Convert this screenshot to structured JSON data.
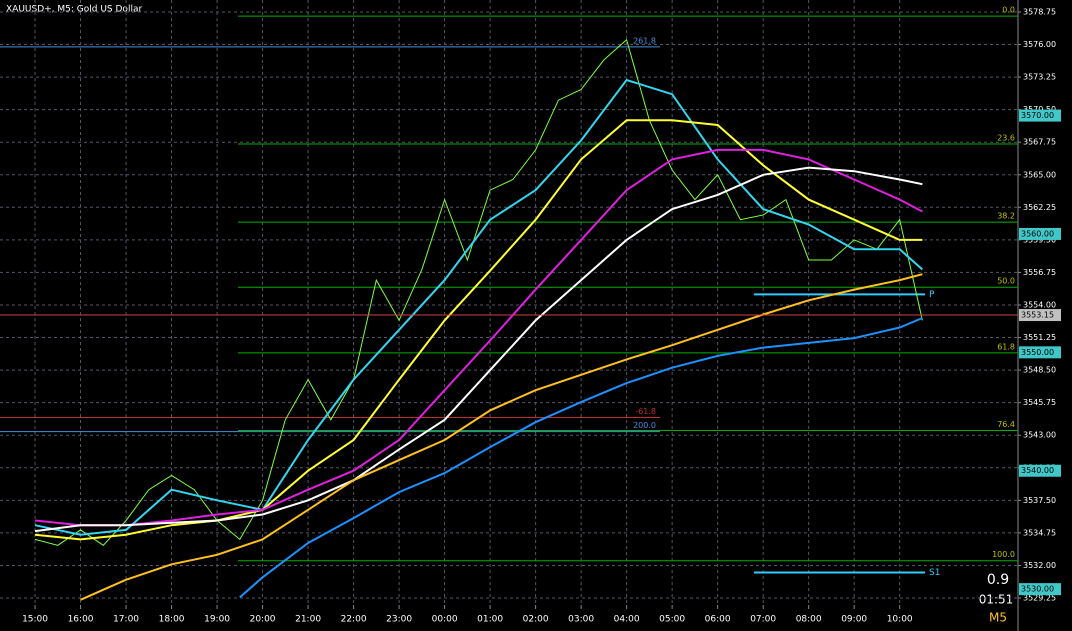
{
  "chart_data": {
    "type": "line",
    "title": "XAUUSD+, M5:  Gold US Dollar",
    "xlim": [
      -0.77,
      21.6
    ],
    "ylim": [
      3528.66,
      3579.76
    ],
    "grid": true,
    "xticks": [
      {
        "value": 0,
        "label": "15:00"
      },
      {
        "value": 1,
        "label": "16:00"
      },
      {
        "value": 2,
        "label": "17:00"
      },
      {
        "value": 3,
        "label": "18:00"
      },
      {
        "value": 4,
        "label": "19:00"
      },
      {
        "value": 5,
        "label": "20:00"
      },
      {
        "value": 6,
        "label": "21:00"
      },
      {
        "value": 7,
        "label": "22:00"
      },
      {
        "value": 8,
        "label": "23:00"
      },
      {
        "value": 9,
        "label": "00:00"
      },
      {
        "value": 10,
        "label": "01:00"
      },
      {
        "value": 11,
        "label": "02:00"
      },
      {
        "value": 12,
        "label": "03:00"
      },
      {
        "value": 13,
        "label": "04:00"
      },
      {
        "value": 14,
        "label": "05:00"
      },
      {
        "value": 15,
        "label": "06:00"
      },
      {
        "value": 16,
        "label": "07:00"
      },
      {
        "value": 17,
        "label": "08:00"
      },
      {
        "value": 18,
        "label": "09:00"
      },
      {
        "value": 19,
        "label": "10:00"
      }
    ],
    "yticks": [
      3578.75,
      {
        "value": 3576,
        "label": "3576.00"
      },
      3573.25,
      {
        "value": 3570.5,
        "label": "3570.50"
      },
      3567.75,
      {
        "value": 3565,
        "label": "3565.00"
      },
      3562.25,
      {
        "value": 3559.5,
        "label": "3559.50"
      },
      3556.75,
      {
        "value": 3554,
        "label": "3554.00"
      },
      3551.25,
      {
        "value": 3548.5,
        "label": "3548.50"
      },
      3545.75,
      {
        "value": 3543,
        "label": "3543.00"
      },
      3540.25,
      {
        "value": 3537.5,
        "label": "3537.50"
      },
      3534.75,
      {
        "value": 3532,
        "label": "3532.00"
      },
      3529.25
    ],
    "series": [
      {
        "color": "#7fff3f",
        "x": [
          0,
          0.5,
          1,
          1.5,
          2,
          2.5,
          3,
          3.5,
          4,
          4.5,
          5,
          5.5,
          6,
          6.5,
          7,
          7.5,
          8,
          8.5,
          9,
          9.5,
          10,
          10.5,
          11,
          11.5,
          12,
          12.5,
          13,
          13.5,
          14,
          14.5,
          15,
          15.5,
          16,
          16.5,
          17,
          17.5,
          18,
          18.5,
          19,
          19.5
        ],
        "values": [
          3534.2,
          3533.7,
          3535.0,
          3533.7,
          3535.8,
          3538.4,
          3539.6,
          3538.4,
          3535.8,
          3534.2,
          3537.5,
          3544.3,
          3547.7,
          3544.3,
          3547.7,
          3556.1,
          3552.7,
          3557.0,
          3562.9,
          3557.8,
          3563.7,
          3564.6,
          3567.1,
          3571.3,
          3572.2,
          3574.7,
          3576.4,
          3569.6,
          3565.4,
          3562.9,
          3565.0,
          3561.2,
          3561.6,
          3562.9,
          3557.8,
          3557.8,
          3559.5,
          3558.7,
          3561.2,
          3552.7
        ]
      },
      {
        "color": "#33d6f0",
        "x": [
          0,
          1,
          2,
          3,
          4,
          5,
          6,
          7,
          8,
          9,
          10,
          11,
          12,
          13,
          14,
          15,
          16,
          17,
          18,
          19,
          19.5
        ],
        "values": [
          3535.4,
          3534.6,
          3535.0,
          3538.4,
          3537.5,
          3536.7,
          3542.6,
          3547.7,
          3551.9,
          3556.1,
          3561.2,
          3563.7,
          3567.9,
          3573.0,
          3571.8,
          3566.3,
          3562.1,
          3560.8,
          3558.7,
          3558.7,
          3557.0
        ]
      },
      {
        "color": "#ffff33",
        "x": [
          0,
          1,
          2,
          3,
          4,
          5,
          6,
          7,
          8,
          9,
          10,
          11,
          12,
          13,
          14,
          15,
          16,
          17,
          18,
          19,
          19.5
        ],
        "values": [
          3534.6,
          3534.2,
          3534.6,
          3535.4,
          3535.8,
          3536.7,
          3540.0,
          3542.6,
          3547.7,
          3552.7,
          3556.9,
          3561.2,
          3566.3,
          3569.6,
          3569.6,
          3569.2,
          3565.8,
          3562.9,
          3561.2,
          3559.5,
          3559.5
        ]
      },
      {
        "color": "#e020e0",
        "x": [
          0,
          1,
          2,
          3,
          4,
          5,
          6,
          7,
          8,
          9,
          10,
          11,
          12,
          13,
          14,
          15,
          16,
          17,
          18,
          19,
          19.5
        ],
        "values": [
          3535.8,
          3535.4,
          3535.4,
          3535.8,
          3536.3,
          3536.7,
          3538.4,
          3540.0,
          3542.6,
          3546.8,
          3551.0,
          3555.3,
          3559.5,
          3563.7,
          3566.3,
          3567.1,
          3567.1,
          3566.3,
          3564.6,
          3562.9,
          3561.9
        ]
      },
      {
        "color": "#ffffff",
        "x": [
          0,
          1,
          2,
          3,
          4,
          5,
          6,
          7,
          8,
          9,
          10,
          11,
          12,
          13,
          14,
          15,
          16,
          17,
          18,
          19,
          19.5
        ],
        "values": [
          3534.9,
          3535.4,
          3535.4,
          3535.6,
          3535.8,
          3536.3,
          3537.5,
          3539.2,
          3541.8,
          3544.3,
          3548.5,
          3552.7,
          3556.1,
          3559.5,
          3562.1,
          3563.3,
          3565.0,
          3565.6,
          3565.3,
          3564.6,
          3564.2
        ]
      },
      {
        "color": "#ffc020",
        "x": [
          1,
          2,
          3,
          4,
          5,
          6,
          7,
          8,
          9,
          10,
          11,
          12,
          13,
          14,
          15,
          16,
          17,
          18,
          19,
          19.5
        ],
        "values": [
          3529.1,
          3530.8,
          3532.1,
          3532.9,
          3534.2,
          3536.7,
          3539.2,
          3540.9,
          3542.6,
          3545.1,
          3546.8,
          3548.1,
          3549.4,
          3550.6,
          3551.9,
          3553.2,
          3554.4,
          3555.3,
          3556.1,
          3556.6
        ]
      },
      {
        "color": "#1e90ff",
        "x": [
          4.5,
          5,
          6,
          7,
          8,
          9,
          10,
          11,
          12,
          13,
          14,
          15,
          16,
          17,
          18,
          19,
          19.5
        ],
        "values": [
          3529.3,
          3531.0,
          3533.9,
          3536.0,
          3538.2,
          3539.8,
          3542.0,
          3544.1,
          3545.8,
          3547.4,
          3548.7,
          3549.7,
          3550.4,
          3550.8,
          3551.2,
          3552.1,
          3552.9
        ]
      }
    ],
    "fib_levels": [
      {
        "label": "0.0",
        "price": 3578.4,
        "color": "#00b000"
      },
      {
        "label": "261.8",
        "price": 3575.8,
        "color": "#4a90d9"
      },
      {
        "label": "23.6",
        "price": 3567.6,
        "color": "#00b000"
      },
      {
        "label": "38.2",
        "price": 3561.0,
        "color": "#00b000"
      },
      {
        "label": "50.0",
        "price": 3555.5,
        "color": "#00b000"
      },
      {
        "label": "61.8",
        "price": 3549.95,
        "color": "#00b000"
      },
      {
        "label": "-61.8",
        "price": 3544.5,
        "color": "#c03030"
      },
      {
        "label": "200.0",
        "price": 3543.3,
        "color": "#4a90d9"
      },
      {
        "label": "76.4",
        "price": 3543.4,
        "color": "#00b000"
      },
      {
        "label": "100.0",
        "price": 3532.4,
        "color": "#00b000"
      }
    ],
    "price_labels": [
      {
        "value": 3570,
        "label": "3570.00",
        "color": "#40c8c8"
      },
      {
        "value": 3560,
        "label": "3560.00",
        "color": "#40c8c8"
      },
      {
        "value": 3553.15,
        "label": "3553.15",
        "color": "#c0c0c0"
      },
      {
        "value": 3550,
        "label": "3550.00",
        "color": "#40c8c8"
      },
      {
        "value": 3540,
        "label": "3540.00",
        "color": "#40c8c8"
      },
      {
        "value": 3530,
        "label": "3530.00",
        "color": "#40c8c8"
      }
    ],
    "pivots": [
      {
        "label": "P",
        "price": 3554.9
      },
      {
        "label": "S1",
        "price": 3531.4
      }
    ],
    "info": {
      "spread": "0.9",
      "timer": "01:51",
      "timeframe": "M5"
    }
  }
}
